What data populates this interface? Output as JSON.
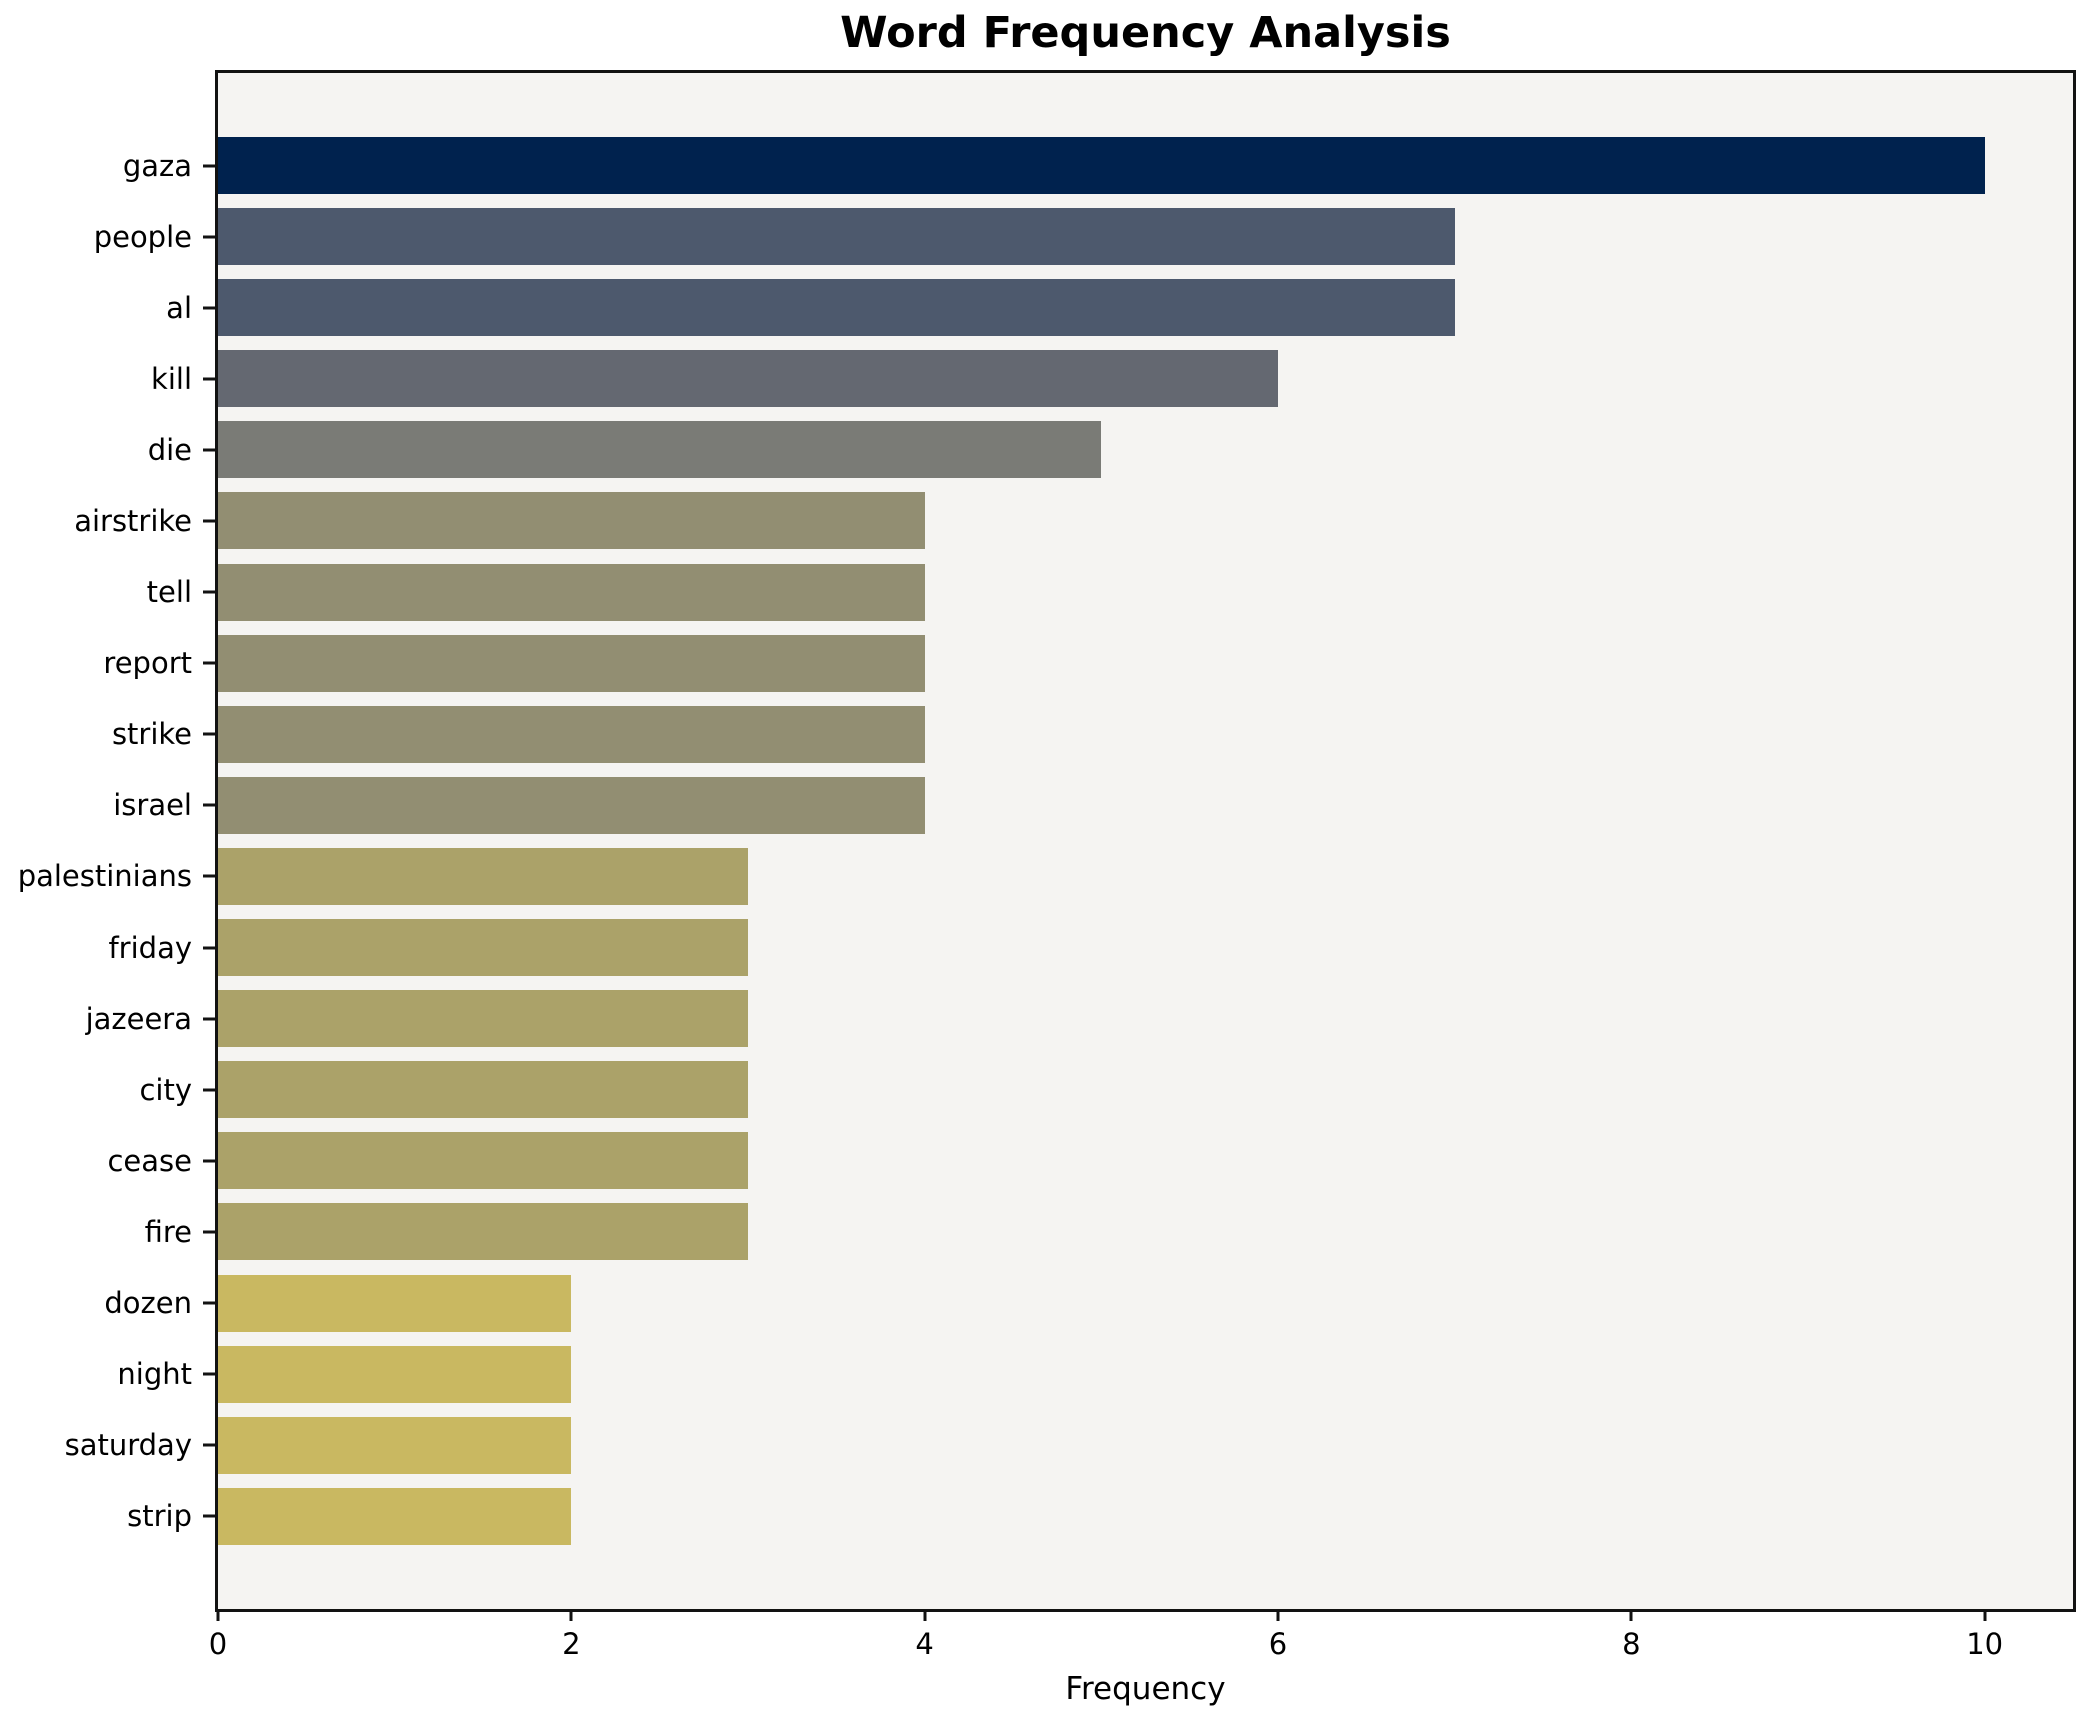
{
  "chart_data": {
    "type": "bar",
    "orientation": "horizontal",
    "title": "Word Frequency Analysis",
    "xlabel": "Frequency",
    "ylabel": "",
    "categories": [
      "gaza",
      "people",
      "al",
      "kill",
      "die",
      "airstrike",
      "tell",
      "report",
      "strike",
      "israel",
      "palestinians",
      "friday",
      "jazeera",
      "city",
      "cease",
      "fire",
      "dozen",
      "night",
      "saturday",
      "strip"
    ],
    "values": [
      10,
      7,
      7,
      6,
      5,
      4,
      4,
      4,
      4,
      4,
      3,
      3,
      3,
      3,
      3,
      3,
      2,
      2,
      2,
      2
    ],
    "bar_colors": [
      "#00224e",
      "#4d596d",
      "#4d596d",
      "#646871",
      "#7a7b76",
      "#928e72",
      "#928e72",
      "#928e72",
      "#928e72",
      "#928e72",
      "#aba269",
      "#aba269",
      "#aba269",
      "#aba269",
      "#aba269",
      "#aba269",
      "#c9b861",
      "#c9b861",
      "#c9b861",
      "#c9b861"
    ],
    "xticks": [
      0,
      2,
      4,
      6,
      8,
      10
    ],
    "xlim": [
      0,
      10.5
    ],
    "grid": false,
    "legend": "none",
    "plot_bg": "#f5f4f2",
    "figure_bg": "#ffffff",
    "spine_color": "#121212"
  }
}
